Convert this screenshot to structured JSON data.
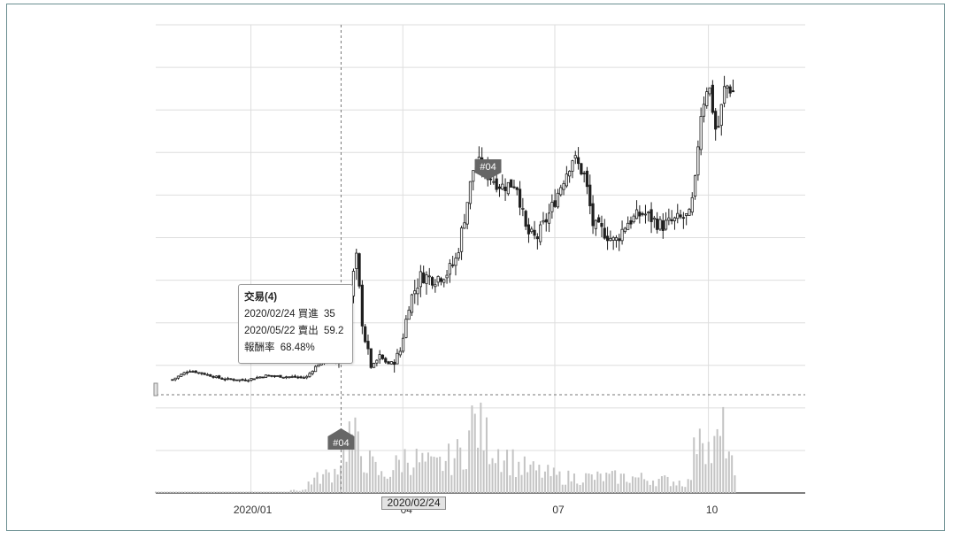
{
  "colors": {
    "candle": "#1e1e1e",
    "volume": "#c4c4c4",
    "grid": "#dedede",
    "marker": "#666666",
    "crosshair": "#777777"
  },
  "tooltip": {
    "title": "交易(4)",
    "buy_date": "2020/02/24",
    "buy_label": "買進",
    "buy_price": "35",
    "sell_date": "2020/05/22",
    "sell_label": "賣出",
    "sell_price": "59.2",
    "return_label": "報酬率",
    "return_value": "68.48%"
  },
  "crosshair_label": "2020/02/24",
  "markers": [
    {
      "label": "#04",
      "date": "2020/02/24",
      "side": "buy"
    },
    {
      "label": "#04",
      "date": "2020/05/22",
      "side": "sell"
    }
  ],
  "chart_data": {
    "type": "candlestick",
    "x_tick_labels": [
      "2020/01",
      "04",
      "07",
      "10"
    ],
    "grid": true,
    "close_path": [
      {
        "date": "2019/11/15",
        "close": 28.2
      },
      {
        "date": "2019/11/25",
        "close": 29.6
      },
      {
        "date": "2019/12/05",
        "close": 29.0
      },
      {
        "date": "2019/12/15",
        "close": 28.3
      },
      {
        "date": "2019/12/28",
        "close": 28.1
      },
      {
        "date": "2020/01/10",
        "close": 28.8
      },
      {
        "date": "2020/01/25",
        "close": 28.6
      },
      {
        "date": "2020/02/03",
        "close": 28.5
      },
      {
        "date": "2020/02/10",
        "close": 30.5
      },
      {
        "date": "2020/02/18",
        "close": 31.0
      },
      {
        "date": "2020/02/24",
        "close": 31.5
      },
      {
        "date": "2020/02/27",
        "close": 35.0
      },
      {
        "date": "2020/03/01",
        "close": 41.5
      },
      {
        "date": "2020/03/04",
        "close": 47.0
      },
      {
        "date": "2020/03/08",
        "close": 36.0
      },
      {
        "date": "2020/03/13",
        "close": 30.0
      },
      {
        "date": "2020/03/18",
        "close": 31.5
      },
      {
        "date": "2020/03/24",
        "close": 30.5
      },
      {
        "date": "2020/03/30",
        "close": 32.0
      },
      {
        "date": "2020/04/05",
        "close": 40.0
      },
      {
        "date": "2020/04/12",
        "close": 44.0
      },
      {
        "date": "2020/04/20",
        "close": 43.5
      },
      {
        "date": "2020/04/28",
        "close": 44.5
      },
      {
        "date": "2020/05/03",
        "close": 46.5
      },
      {
        "date": "2020/05/08",
        "close": 53.0
      },
      {
        "date": "2020/05/13",
        "close": 60.0
      },
      {
        "date": "2020/05/17",
        "close": 61.0
      },
      {
        "date": "2020/05/22",
        "close": 59.2
      },
      {
        "date": "2020/05/30",
        "close": 57.5
      },
      {
        "date": "2020/06/08",
        "close": 58.0
      },
      {
        "date": "2020/06/14",
        "close": 50.5
      },
      {
        "date": "2020/06/20",
        "close": 49.5
      },
      {
        "date": "2020/06/28",
        "close": 53.5
      },
      {
        "date": "2020/07/06",
        "close": 58.5
      },
      {
        "date": "2020/07/12",
        "close": 62.0
      },
      {
        "date": "2020/07/19",
        "close": 59.0
      },
      {
        "date": "2020/07/24",
        "close": 51.5
      },
      {
        "date": "2020/07/31",
        "close": 50.5
      },
      {
        "date": "2020/08/06",
        "close": 49.0
      },
      {
        "date": "2020/08/13",
        "close": 52.0
      },
      {
        "date": "2020/08/23",
        "close": 53.5
      },
      {
        "date": "2020/09/03",
        "close": 51.5
      },
      {
        "date": "2020/09/13",
        "close": 52.5
      },
      {
        "date": "2020/09/20",
        "close": 53.0
      },
      {
        "date": "2020/09/23",
        "close": 58.0
      },
      {
        "date": "2020/09/26",
        "close": 68.0
      },
      {
        "date": "2020/10/01",
        "close": 73.5
      },
      {
        "date": "2020/10/06",
        "close": 65.0
      },
      {
        "date": "2020/10/11",
        "close": 73.0
      },
      {
        "date": "2020/10/17",
        "close": 71.5
      }
    ],
    "volume": [
      {
        "date": "2020/02/03",
        "v": 1
      },
      {
        "date": "2020/02/20",
        "v": 2
      },
      {
        "date": "2020/03/01",
        "v": 6
      },
      {
        "date": "2020/03/06",
        "v": 4
      },
      {
        "date": "2020/03/20",
        "v": 1.5
      },
      {
        "date": "2020/04/03",
        "v": 3.5
      },
      {
        "date": "2020/04/20",
        "v": 2.5
      },
      {
        "date": "2020/05/08",
        "v": 4
      },
      {
        "date": "2020/05/13",
        "v": 7
      },
      {
        "date": "2020/05/22",
        "v": 5
      },
      {
        "date": "2020/06/10",
        "v": 2.5
      },
      {
        "date": "2020/07/05",
        "v": 1.5
      },
      {
        "date": "2020/08/15",
        "v": 1.5
      },
      {
        "date": "2020/09/20",
        "v": 1
      },
      {
        "date": "2020/09/26",
        "v": 8
      },
      {
        "date": "2020/10/02",
        "v": 3.5
      },
      {
        "date": "2020/10/11",
        "v": 6
      },
      {
        "date": "2020/10/17",
        "v": 1
      }
    ]
  }
}
